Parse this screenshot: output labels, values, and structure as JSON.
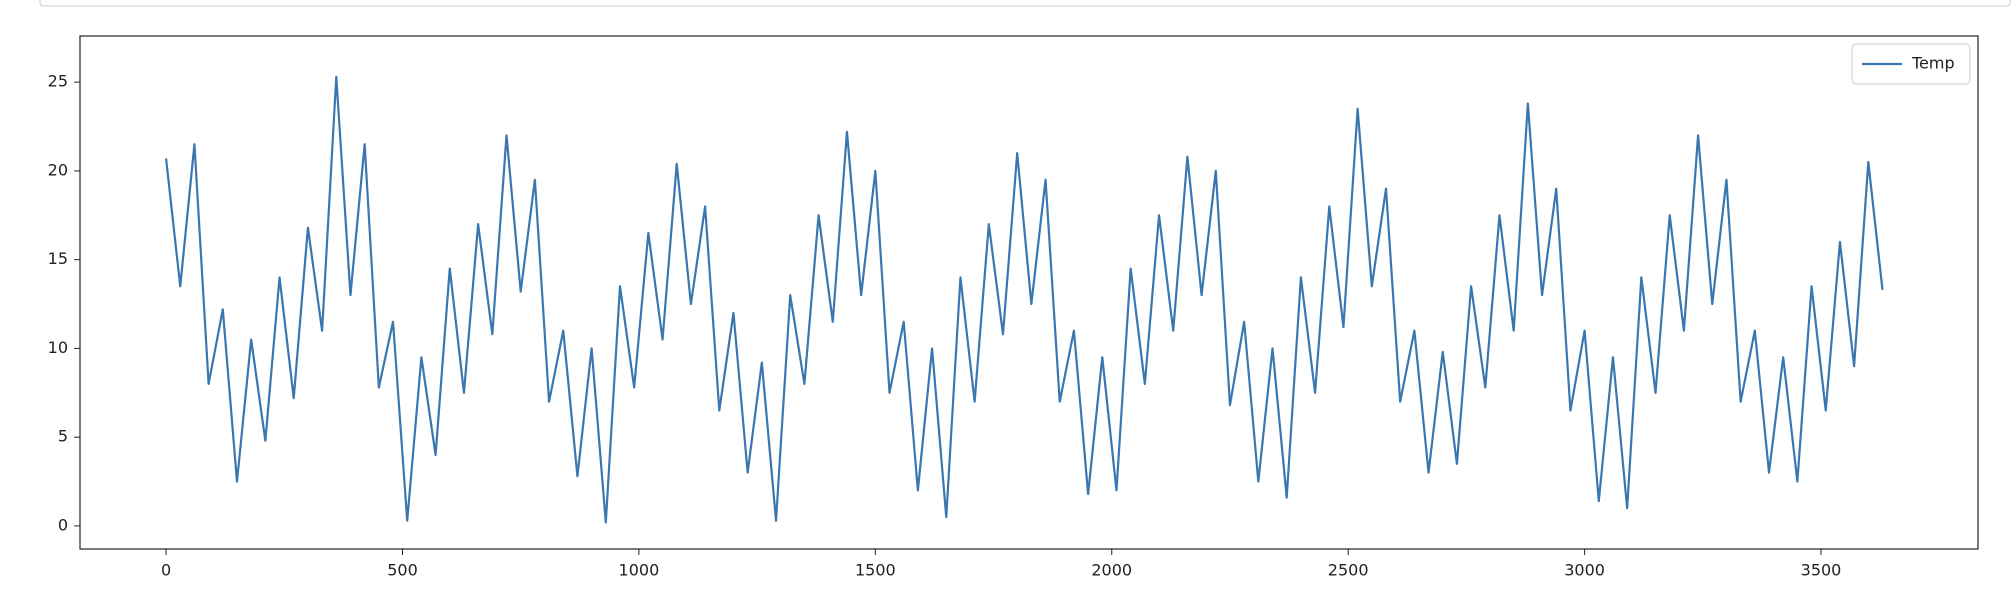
{
  "chart_data": {
    "type": "line",
    "x": [
      0,
      30,
      60,
      90,
      120,
      150,
      180,
      210,
      240,
      270,
      300,
      330,
      360,
      390,
      420,
      450,
      480,
      510,
      540,
      570,
      600,
      630,
      660,
      690,
      720,
      750,
      780,
      810,
      840,
      870,
      900,
      930,
      960,
      990,
      1020,
      1050,
      1080,
      1110,
      1140,
      1170,
      1200,
      1230,
      1260,
      1290,
      1320,
      1350,
      1380,
      1410,
      1440,
      1470,
      1500,
      1530,
      1560,
      1590,
      1620,
      1650,
      1680,
      1710,
      1740,
      1770,
      1800,
      1830,
      1860,
      1890,
      1920,
      1950,
      1980,
      2010,
      2040,
      2070,
      2100,
      2130,
      2160,
      2190,
      2220,
      2250,
      2280,
      2310,
      2340,
      2370,
      2400,
      2430,
      2460,
      2490,
      2520,
      2550,
      2580,
      2610,
      2640,
      2670,
      2700,
      2730,
      2760,
      2790,
      2820,
      2850,
      2880,
      2910,
      2940,
      2970,
      3000,
      3030,
      3060,
      3090,
      3120,
      3150,
      3180,
      3210,
      3240,
      3270,
      3300,
      3330,
      3360,
      3390,
      3420,
      3450,
      3480,
      3510,
      3540,
      3570,
      3600,
      3630
    ],
    "series": [
      {
        "name": "Temp",
        "color": "#3a77b0",
        "values": [
          20.7,
          13.5,
          21.5,
          8,
          12.2,
          2.5,
          10.5,
          4.8,
          14,
          7.2,
          16.8,
          11,
          25.3,
          13,
          21.5,
          7.8,
          11.5,
          0.3,
          9.5,
          4,
          14.5,
          7.5,
          17,
          10.8,
          22,
          13.2,
          19.5,
          7,
          11,
          2.8,
          10,
          0.2,
          13.5,
          7.8,
          16.5,
          10.5,
          20.4,
          12.5,
          18,
          6.5,
          12,
          3,
          9.2,
          0.3,
          13,
          8,
          17.5,
          11.5,
          22.2,
          13,
          20,
          7.5,
          11.5,
          2,
          10,
          0.5,
          14,
          7,
          17,
          10.8,
          21,
          12.5,
          19.5,
          7,
          11,
          1.8,
          9.5,
          2,
          14.5,
          8,
          17.5,
          11,
          20.8,
          13,
          20,
          6.8,
          11.5,
          2.5,
          10,
          1.6,
          14,
          7.5,
          18,
          11.2,
          23.5,
          13.5,
          19,
          7,
          11,
          3,
          9.8,
          3.5,
          13.5,
          7.8,
          17.5,
          11,
          23.8,
          13,
          19,
          6.5,
          11,
          1.4,
          9.5,
          1,
          14,
          7.5,
          17.5,
          11,
          22,
          12.5,
          19.5,
          7,
          11,
          3,
          9.5,
          2.5,
          13.5,
          6.5,
          16,
          9,
          20.5,
          13.3
        ]
      }
    ],
    "xlim": [
      -182,
      3832
    ],
    "xticks": [
      0,
      500,
      1000,
      1500,
      2000,
      2500,
      3000,
      3500
    ],
    "ylim": [
      -1.3,
      27.6
    ],
    "yticks": [
      0,
      5,
      10,
      15,
      20,
      25
    ],
    "grid": false,
    "legend": "upper right"
  }
}
